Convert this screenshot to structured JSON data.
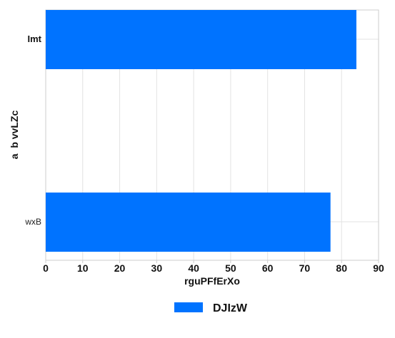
{
  "chart_data": {
    "type": "bar",
    "orientation": "horizontal",
    "categories": [
      "Imt",
      "wxB"
    ],
    "series": [
      {
        "name": "DJIzW",
        "values": [
          84,
          77
        ],
        "color": "#0073ff"
      }
    ],
    "xlabel": "rguPFfErXo",
    "ylabel": "a  b vvLZc",
    "xlim": [
      0,
      90
    ],
    "xticks": [
      "0",
      "10",
      "20",
      "30",
      "40",
      "50",
      "60",
      "70",
      "80",
      "90"
    ],
    "grid": true,
    "legend_position": "bottom"
  }
}
